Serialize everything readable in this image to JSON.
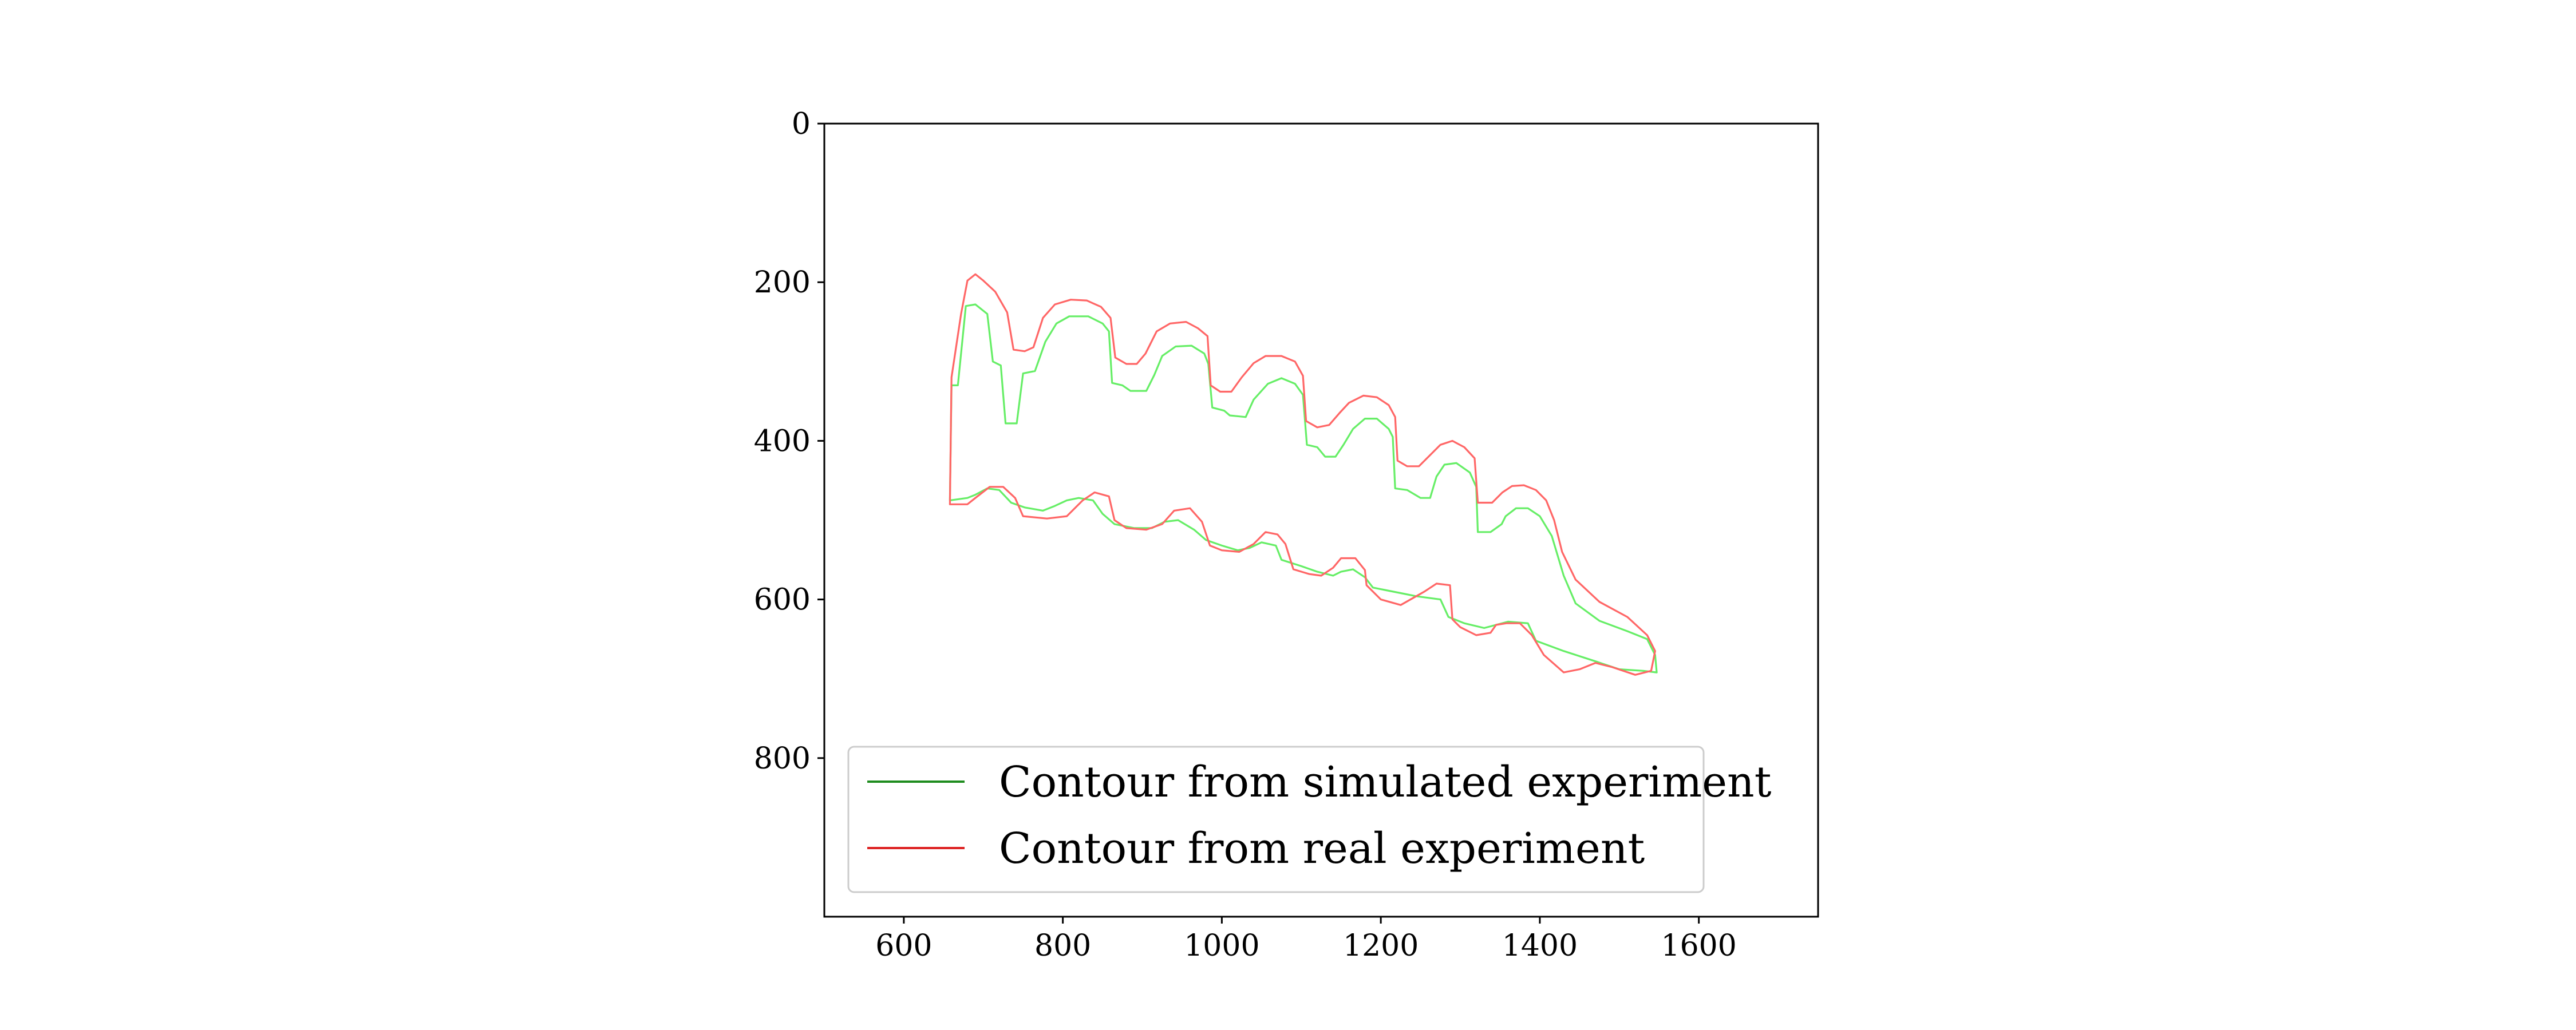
{
  "chart_data": {
    "type": "line",
    "title": "",
    "xlabel": "",
    "ylabel": "",
    "xlim": [
      500,
      1750
    ],
    "ylim": [
      1000,
      0
    ],
    "y_inverted": true,
    "grid": false,
    "legend_position": "lower-left",
    "x_ticks": [
      600,
      800,
      1000,
      1200,
      1400,
      1600
    ],
    "y_ticks": [
      0,
      200,
      400,
      600,
      800
    ],
    "series": [
      {
        "name": "Contour from simulated experiment",
        "legend_color": "#1e8c1e",
        "line_color": "#66ee66",
        "points": [
          [
            658,
            475
          ],
          [
            660,
            330
          ],
          [
            668,
            330
          ],
          [
            678,
            230
          ],
          [
            690,
            228
          ],
          [
            705,
            240
          ],
          [
            712,
            300
          ],
          [
            722,
            305
          ],
          [
            728,
            378
          ],
          [
            742,
            378
          ],
          [
            750,
            315
          ],
          [
            765,
            312
          ],
          [
            778,
            275
          ],
          [
            792,
            252
          ],
          [
            808,
            243
          ],
          [
            832,
            243
          ],
          [
            850,
            252
          ],
          [
            858,
            262
          ],
          [
            862,
            327
          ],
          [
            875,
            330
          ],
          [
            885,
            337
          ],
          [
            905,
            337
          ],
          [
            915,
            317
          ],
          [
            925,
            293
          ],
          [
            942,
            281
          ],
          [
            962,
            280
          ],
          [
            978,
            290
          ],
          [
            983,
            303
          ],
          [
            988,
            358
          ],
          [
            1003,
            362
          ],
          [
            1010,
            368
          ],
          [
            1030,
            370
          ],
          [
            1040,
            348
          ],
          [
            1058,
            328
          ],
          [
            1075,
            321
          ],
          [
            1092,
            328
          ],
          [
            1102,
            342
          ],
          [
            1107,
            405
          ],
          [
            1120,
            408
          ],
          [
            1130,
            420
          ],
          [
            1143,
            420
          ],
          [
            1153,
            405
          ],
          [
            1165,
            385
          ],
          [
            1180,
            372
          ],
          [
            1195,
            372
          ],
          [
            1210,
            385
          ],
          [
            1215,
            395
          ],
          [
            1218,
            460
          ],
          [
            1233,
            462
          ],
          [
            1250,
            472
          ],
          [
            1262,
            472
          ],
          [
            1270,
            445
          ],
          [
            1280,
            430
          ],
          [
            1295,
            428
          ],
          [
            1312,
            440
          ],
          [
            1320,
            458
          ],
          [
            1322,
            515
          ],
          [
            1338,
            515
          ],
          [
            1352,
            505
          ],
          [
            1357,
            495
          ],
          [
            1370,
            485
          ],
          [
            1385,
            485
          ],
          [
            1400,
            495
          ],
          [
            1415,
            520
          ],
          [
            1430,
            570
          ],
          [
            1445,
            605
          ],
          [
            1475,
            627
          ],
          [
            1510,
            640
          ],
          [
            1535,
            650
          ],
          [
            1545,
            670
          ],
          [
            1547,
            692
          ],
          [
            1530,
            690
          ],
          [
            1500,
            688
          ],
          [
            1470,
            678
          ],
          [
            1430,
            665
          ],
          [
            1395,
            652
          ],
          [
            1385,
            630
          ],
          [
            1360,
            628
          ],
          [
            1345,
            632
          ],
          [
            1330,
            636
          ],
          [
            1305,
            630
          ],
          [
            1285,
            622
          ],
          [
            1275,
            600
          ],
          [
            1245,
            596
          ],
          [
            1225,
            592
          ],
          [
            1205,
            588
          ],
          [
            1190,
            585
          ],
          [
            1180,
            572
          ],
          [
            1165,
            562
          ],
          [
            1150,
            565
          ],
          [
            1140,
            570
          ],
          [
            1120,
            565
          ],
          [
            1100,
            558
          ],
          [
            1075,
            550
          ],
          [
            1068,
            532
          ],
          [
            1050,
            528
          ],
          [
            1035,
            535
          ],
          [
            1020,
            538
          ],
          [
            1000,
            532
          ],
          [
            980,
            525
          ],
          [
            965,
            512
          ],
          [
            945,
            500
          ],
          [
            928,
            502
          ],
          [
            912,
            510
          ],
          [
            890,
            510
          ],
          [
            865,
            505
          ],
          [
            850,
            492
          ],
          [
            838,
            475
          ],
          [
            820,
            472
          ],
          [
            805,
            475
          ],
          [
            790,
            482
          ],
          [
            775,
            488
          ],
          [
            752,
            484
          ],
          [
            735,
            478
          ],
          [
            720,
            462
          ],
          [
            705,
            460
          ],
          [
            690,
            468
          ],
          [
            680,
            472
          ],
          [
            658,
            475
          ]
        ]
      },
      {
        "name": "Contour from real experiment",
        "legend_color": "#dd2222",
        "line_color": "#ff6666",
        "points": [
          [
            658,
            480
          ],
          [
            660,
            320
          ],
          [
            672,
            240
          ],
          [
            680,
            198
          ],
          [
            690,
            190
          ],
          [
            700,
            198
          ],
          [
            715,
            212
          ],
          [
            730,
            238
          ],
          [
            738,
            285
          ],
          [
            752,
            287
          ],
          [
            763,
            282
          ],
          [
            775,
            245
          ],
          [
            790,
            228
          ],
          [
            810,
            222
          ],
          [
            830,
            223
          ],
          [
            848,
            231
          ],
          [
            860,
            245
          ],
          [
            866,
            295
          ],
          [
            880,
            303
          ],
          [
            893,
            303
          ],
          [
            904,
            290
          ],
          [
            918,
            262
          ],
          [
            935,
            252
          ],
          [
            955,
            250
          ],
          [
            970,
            258
          ],
          [
            982,
            268
          ],
          [
            986,
            330
          ],
          [
            998,
            338
          ],
          [
            1012,
            338
          ],
          [
            1025,
            320
          ],
          [
            1040,
            302
          ],
          [
            1055,
            293
          ],
          [
            1075,
            293
          ],
          [
            1092,
            300
          ],
          [
            1102,
            318
          ],
          [
            1106,
            375
          ],
          [
            1120,
            383
          ],
          [
            1135,
            380
          ],
          [
            1148,
            365
          ],
          [
            1160,
            352
          ],
          [
            1178,
            343
          ],
          [
            1195,
            345
          ],
          [
            1210,
            355
          ],
          [
            1218,
            370
          ],
          [
            1221,
            425
          ],
          [
            1233,
            432
          ],
          [
            1248,
            432
          ],
          [
            1262,
            418
          ],
          [
            1275,
            405
          ],
          [
            1290,
            400
          ],
          [
            1305,
            408
          ],
          [
            1318,
            422
          ],
          [
            1322,
            478
          ],
          [
            1340,
            478
          ],
          [
            1353,
            465
          ],
          [
            1365,
            457
          ],
          [
            1380,
            456
          ],
          [
            1395,
            462
          ],
          [
            1408,
            475
          ],
          [
            1418,
            500
          ],
          [
            1428,
            540
          ],
          [
            1445,
            575
          ],
          [
            1475,
            603
          ],
          [
            1510,
            622
          ],
          [
            1535,
            645
          ],
          [
            1545,
            665
          ],
          [
            1540,
            690
          ],
          [
            1520,
            695
          ],
          [
            1490,
            685
          ],
          [
            1470,
            680
          ],
          [
            1450,
            688
          ],
          [
            1430,
            692
          ],
          [
            1405,
            670
          ],
          [
            1390,
            645
          ],
          [
            1375,
            630
          ],
          [
            1358,
            630
          ],
          [
            1345,
            632
          ],
          [
            1338,
            642
          ],
          [
            1320,
            645
          ],
          [
            1300,
            635
          ],
          [
            1290,
            625
          ],
          [
            1287,
            582
          ],
          [
            1270,
            580
          ],
          [
            1255,
            590
          ],
          [
            1225,
            607
          ],
          [
            1200,
            600
          ],
          [
            1182,
            582
          ],
          [
            1180,
            563
          ],
          [
            1168,
            548
          ],
          [
            1150,
            548
          ],
          [
            1140,
            560
          ],
          [
            1125,
            570
          ],
          [
            1110,
            568
          ],
          [
            1090,
            562
          ],
          [
            1080,
            530
          ],
          [
            1070,
            518
          ],
          [
            1055,
            515
          ],
          [
            1040,
            530
          ],
          [
            1022,
            540
          ],
          [
            1000,
            538
          ],
          [
            985,
            532
          ],
          [
            975,
            502
          ],
          [
            960,
            485
          ],
          [
            940,
            488
          ],
          [
            925,
            505
          ],
          [
            905,
            512
          ],
          [
            880,
            510
          ],
          [
            865,
            500
          ],
          [
            858,
            470
          ],
          [
            840,
            465
          ],
          [
            825,
            475
          ],
          [
            805,
            495
          ],
          [
            780,
            498
          ],
          [
            750,
            495
          ],
          [
            740,
            472
          ],
          [
            725,
            458
          ],
          [
            708,
            458
          ],
          [
            690,
            472
          ],
          [
            680,
            480
          ],
          [
            658,
            480
          ]
        ]
      }
    ]
  }
}
